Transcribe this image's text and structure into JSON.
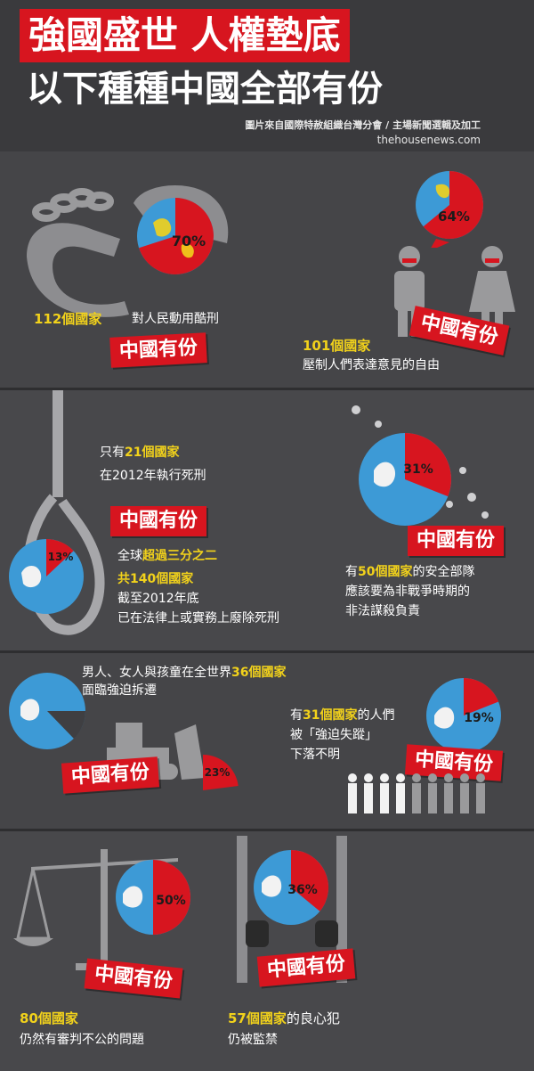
{
  "header": {
    "title_line1": "強國盛世 人權墊底",
    "title_line2": "以下種種中國全部有份",
    "credit": "圖片來自國際特赦組織台灣分會 / 主場新聞選輯及加工",
    "site": "thehousenews.com"
  },
  "tag_label": "中國有份",
  "torture": {
    "percent": "70%",
    "percent_value": 70,
    "count": "112個國家",
    "desc": "對人民動用酷刑"
  },
  "speech": {
    "percent": "64%",
    "percent_value": 64,
    "count": "101個國家",
    "desc": "壓制人們表達意見的自由"
  },
  "death_penalty": {
    "percent": "13%",
    "percent_value": 13,
    "line1_pre": "只有",
    "line1_num": "21個國家",
    "line2": "在2012年執行死刑",
    "line3_pre": "全球",
    "line3_hl": "超過三分之二",
    "line4": "共140個國家",
    "line5": "截至2012年底",
    "line6": "已在法律上或實務上廢除死刑"
  },
  "unlawful_killing": {
    "percent": "31%",
    "percent_value": 31,
    "line1_pre": "有",
    "line1_num": "50個國家",
    "line1_post": "的安全部隊",
    "line2": "應該要為非戰爭時期的",
    "line3": "非法謀殺負責"
  },
  "eviction": {
    "percent": "23%",
    "percent_value": 23,
    "line1_pre": "男人、女人與孩童在全世界",
    "line1_num": "36個國家",
    "line2": "面臨強迫拆遷"
  },
  "disappearance": {
    "percent": "19%",
    "percent_value": 19,
    "line1_pre": "有",
    "line1_num": "31個國家",
    "line1_post": "的人們",
    "line2": "被「強迫失蹤」",
    "line3": "下落不明"
  },
  "unfair_trial": {
    "percent": "50%",
    "percent_value": 50,
    "count": "80個國家",
    "desc": "仍然有審判不公的問題"
  },
  "prisoners": {
    "percent": "36%",
    "percent_value": 36,
    "count": "57個國家",
    "count_post": "的良心犯",
    "desc": "仍被監禁"
  },
  "colors": {
    "red": "#d7151f",
    "yellow": "#f2d21b",
    "ocean": "#3d9ad6",
    "land": "#f2f2f2",
    "bg": "#3f3f42"
  }
}
